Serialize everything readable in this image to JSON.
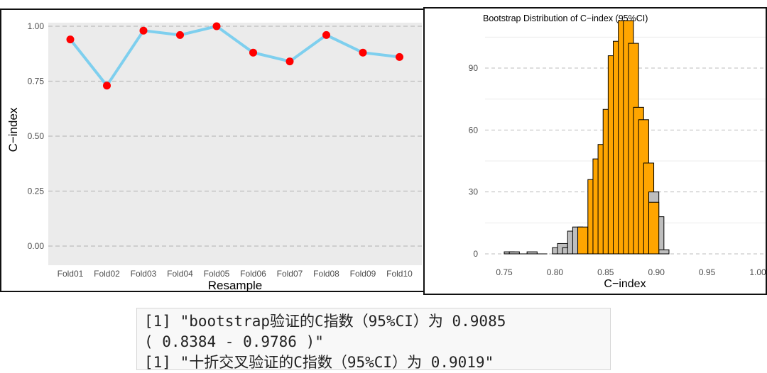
{
  "chart_data": [
    {
      "type": "line",
      "title": "",
      "xlabel": "Resample",
      "ylabel": "C−index",
      "categories": [
        "Fold01",
        "Fold02",
        "Fold03",
        "Fold04",
        "Fold05",
        "Fold06",
        "Fold07",
        "Fold08",
        "Fold09",
        "Fold10"
      ],
      "values": [
        0.94,
        0.73,
        0.98,
        0.96,
        1.0,
        0.88,
        0.84,
        0.96,
        0.88,
        0.86
      ],
      "ylim": [
        0,
        1
      ],
      "yticks": [
        "0.00",
        "0.25",
        "0.50",
        "0.75",
        "1.00"
      ],
      "grid": true,
      "colors": {
        "line": "#7ecfee",
        "point": "#ff0000",
        "panel_bg": "#ebebeb",
        "grid": "#bdbdbd"
      }
    },
    {
      "type": "bar",
      "title": "Bootstrap Distribution of C−index (95%CI)",
      "xlabel": "C−index",
      "ylabel": "",
      "xlim": [
        0.75,
        1.0
      ],
      "ylim": [
        0,
        112
      ],
      "xticks": [
        "0.75",
        "0.80",
        "0.85",
        "0.90",
        "0.95",
        "1.00"
      ],
      "yticks": [
        "0",
        "30",
        "60",
        "90"
      ],
      "grid": true,
      "bin_width": 0.005,
      "bins": [
        {
          "x": 0.75,
          "count": 1,
          "in_ci": false
        },
        {
          "x": 0.755,
          "count": 1,
          "in_ci": false
        },
        {
          "x": 0.765,
          "count": 0,
          "in_ci": false
        },
        {
          "x": 0.7725,
          "count": 1,
          "in_ci": false
        },
        {
          "x": 0.7825,
          "count": 0,
          "in_ci": false
        },
        {
          "x": 0.7975,
          "count": 3,
          "in_ci": false
        },
        {
          "x": 0.8025,
          "count": 5,
          "in_ci": false
        },
        {
          "x": 0.8075,
          "count": 3,
          "in_ci": false
        },
        {
          "x": 0.8125,
          "count": 11,
          "in_ci": false
        },
        {
          "x": 0.8175,
          "count": 13,
          "in_ci": false
        },
        {
          "x": 0.8225,
          "count": 13,
          "in_ci": true
        },
        {
          "x": 0.8325,
          "count": 36,
          "in_ci": true
        },
        {
          "x": 0.8375,
          "count": 46,
          "in_ci": true
        },
        {
          "x": 0.8425,
          "count": 53,
          "in_ci": true
        },
        {
          "x": 0.8475,
          "count": 70,
          "in_ci": true
        },
        {
          "x": 0.8525,
          "count": 96,
          "in_ci": true
        },
        {
          "x": 0.8575,
          "count": 103,
          "in_ci": true
        },
        {
          "x": 0.8625,
          "count": 113,
          "in_ci": true
        },
        {
          "x": 0.8675,
          "count": 113,
          "in_ci": true
        },
        {
          "x": 0.8725,
          "count": 102,
          "in_ci": true
        },
        {
          "x": 0.8775,
          "count": 71,
          "in_ci": true
        },
        {
          "x": 0.8825,
          "count": 65,
          "in_ci": true
        },
        {
          "x": 0.8875,
          "count": 44,
          "in_ci": true
        },
        {
          "x": 0.8925,
          "count": 30,
          "in_ci": false
        },
        {
          "x": 0.8975,
          "count": 18,
          "in_ci": false
        },
        {
          "x": 0.9025,
          "count": 2,
          "in_ci": false
        }
      ],
      "ci_overlay": {
        "x": 0.8925,
        "count": 25
      },
      "colors": {
        "in_ci": "#ffa500",
        "out_ci": "#bebebe",
        "edge": "#000000",
        "grid": "#bdbdbd"
      }
    }
  ],
  "console": {
    "lines": [
      "[1] \"bootstrap验证的C指数（95%CI）为 0.9085",
      "( 0.8384 - 0.9786 )\"",
      "[1] \"十折交叉验证的C指数（95%CI）为 0.9019\""
    ]
  }
}
